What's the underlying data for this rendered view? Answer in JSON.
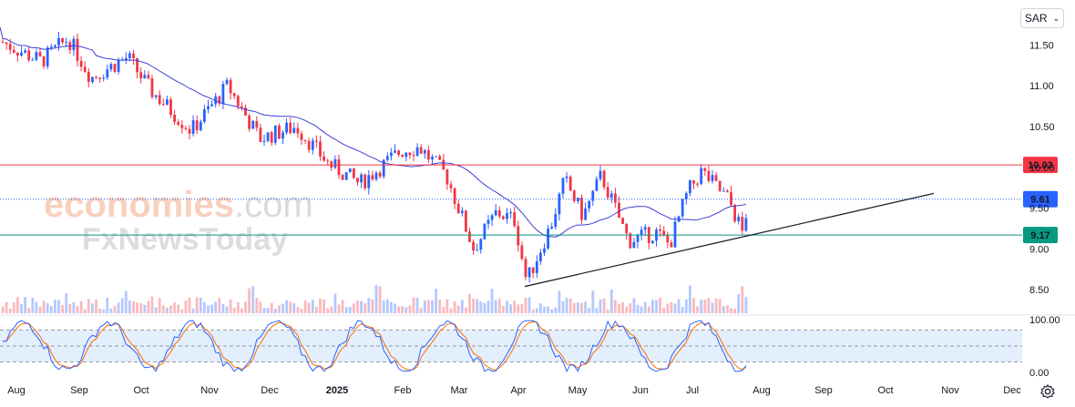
{
  "currency": {
    "label": "SAR"
  },
  "watermark": {
    "line1": "economies",
    "line1_suffix": ".com",
    "line2": "FxNewsToday"
  },
  "chart_data": {
    "type": "candlestick",
    "price_axis": {
      "ticks": [
        11.5,
        11.0,
        10.5,
        10.0,
        9.5,
        9.0,
        8.5
      ],
      "labels": [
        "11.50",
        "11.00",
        "10.50",
        "10.00",
        "9.50",
        "9.00",
        "8.50"
      ],
      "ylim": [
        8.35,
        11.9
      ]
    },
    "time_axis": {
      "labels": [
        "Aug",
        "Sep",
        "Oct",
        "Nov",
        "Dec",
        "2025",
        "Feb",
        "Mar",
        "Apr",
        "May",
        "Jun",
        "Jul",
        "Aug",
        "Sep",
        "Oct",
        "Nov",
        "Dec"
      ]
    },
    "levels": [
      {
        "value": 10.03,
        "label": "10.03",
        "color": "#f23645",
        "style": "solid"
      },
      {
        "value": 9.61,
        "label": "9.61",
        "color": "#2962ff",
        "style": "dotted"
      },
      {
        "value": 9.17,
        "label": "9.17",
        "color": "#089981",
        "style": "solid"
      }
    ],
    "trendline": {
      "from": {
        "date": "Apr",
        "price": 8.54
      },
      "to": {
        "date": "Oct",
        "price": 9.68
      },
      "color": "#131722"
    },
    "moving_average": {
      "color": "#3f3fd6"
    },
    "candle_colors": {
      "up": "#2962ff",
      "down": "#f23645"
    },
    "oscillator": {
      "ticks": [
        100,
        0
      ],
      "labels": [
        "100.00",
        "0.00"
      ],
      "upper_band": 80,
      "lower_band": 20,
      "k_color": "#2962ff",
      "d_color": "#ff6d00",
      "band_fill": "#e3effd"
    }
  }
}
